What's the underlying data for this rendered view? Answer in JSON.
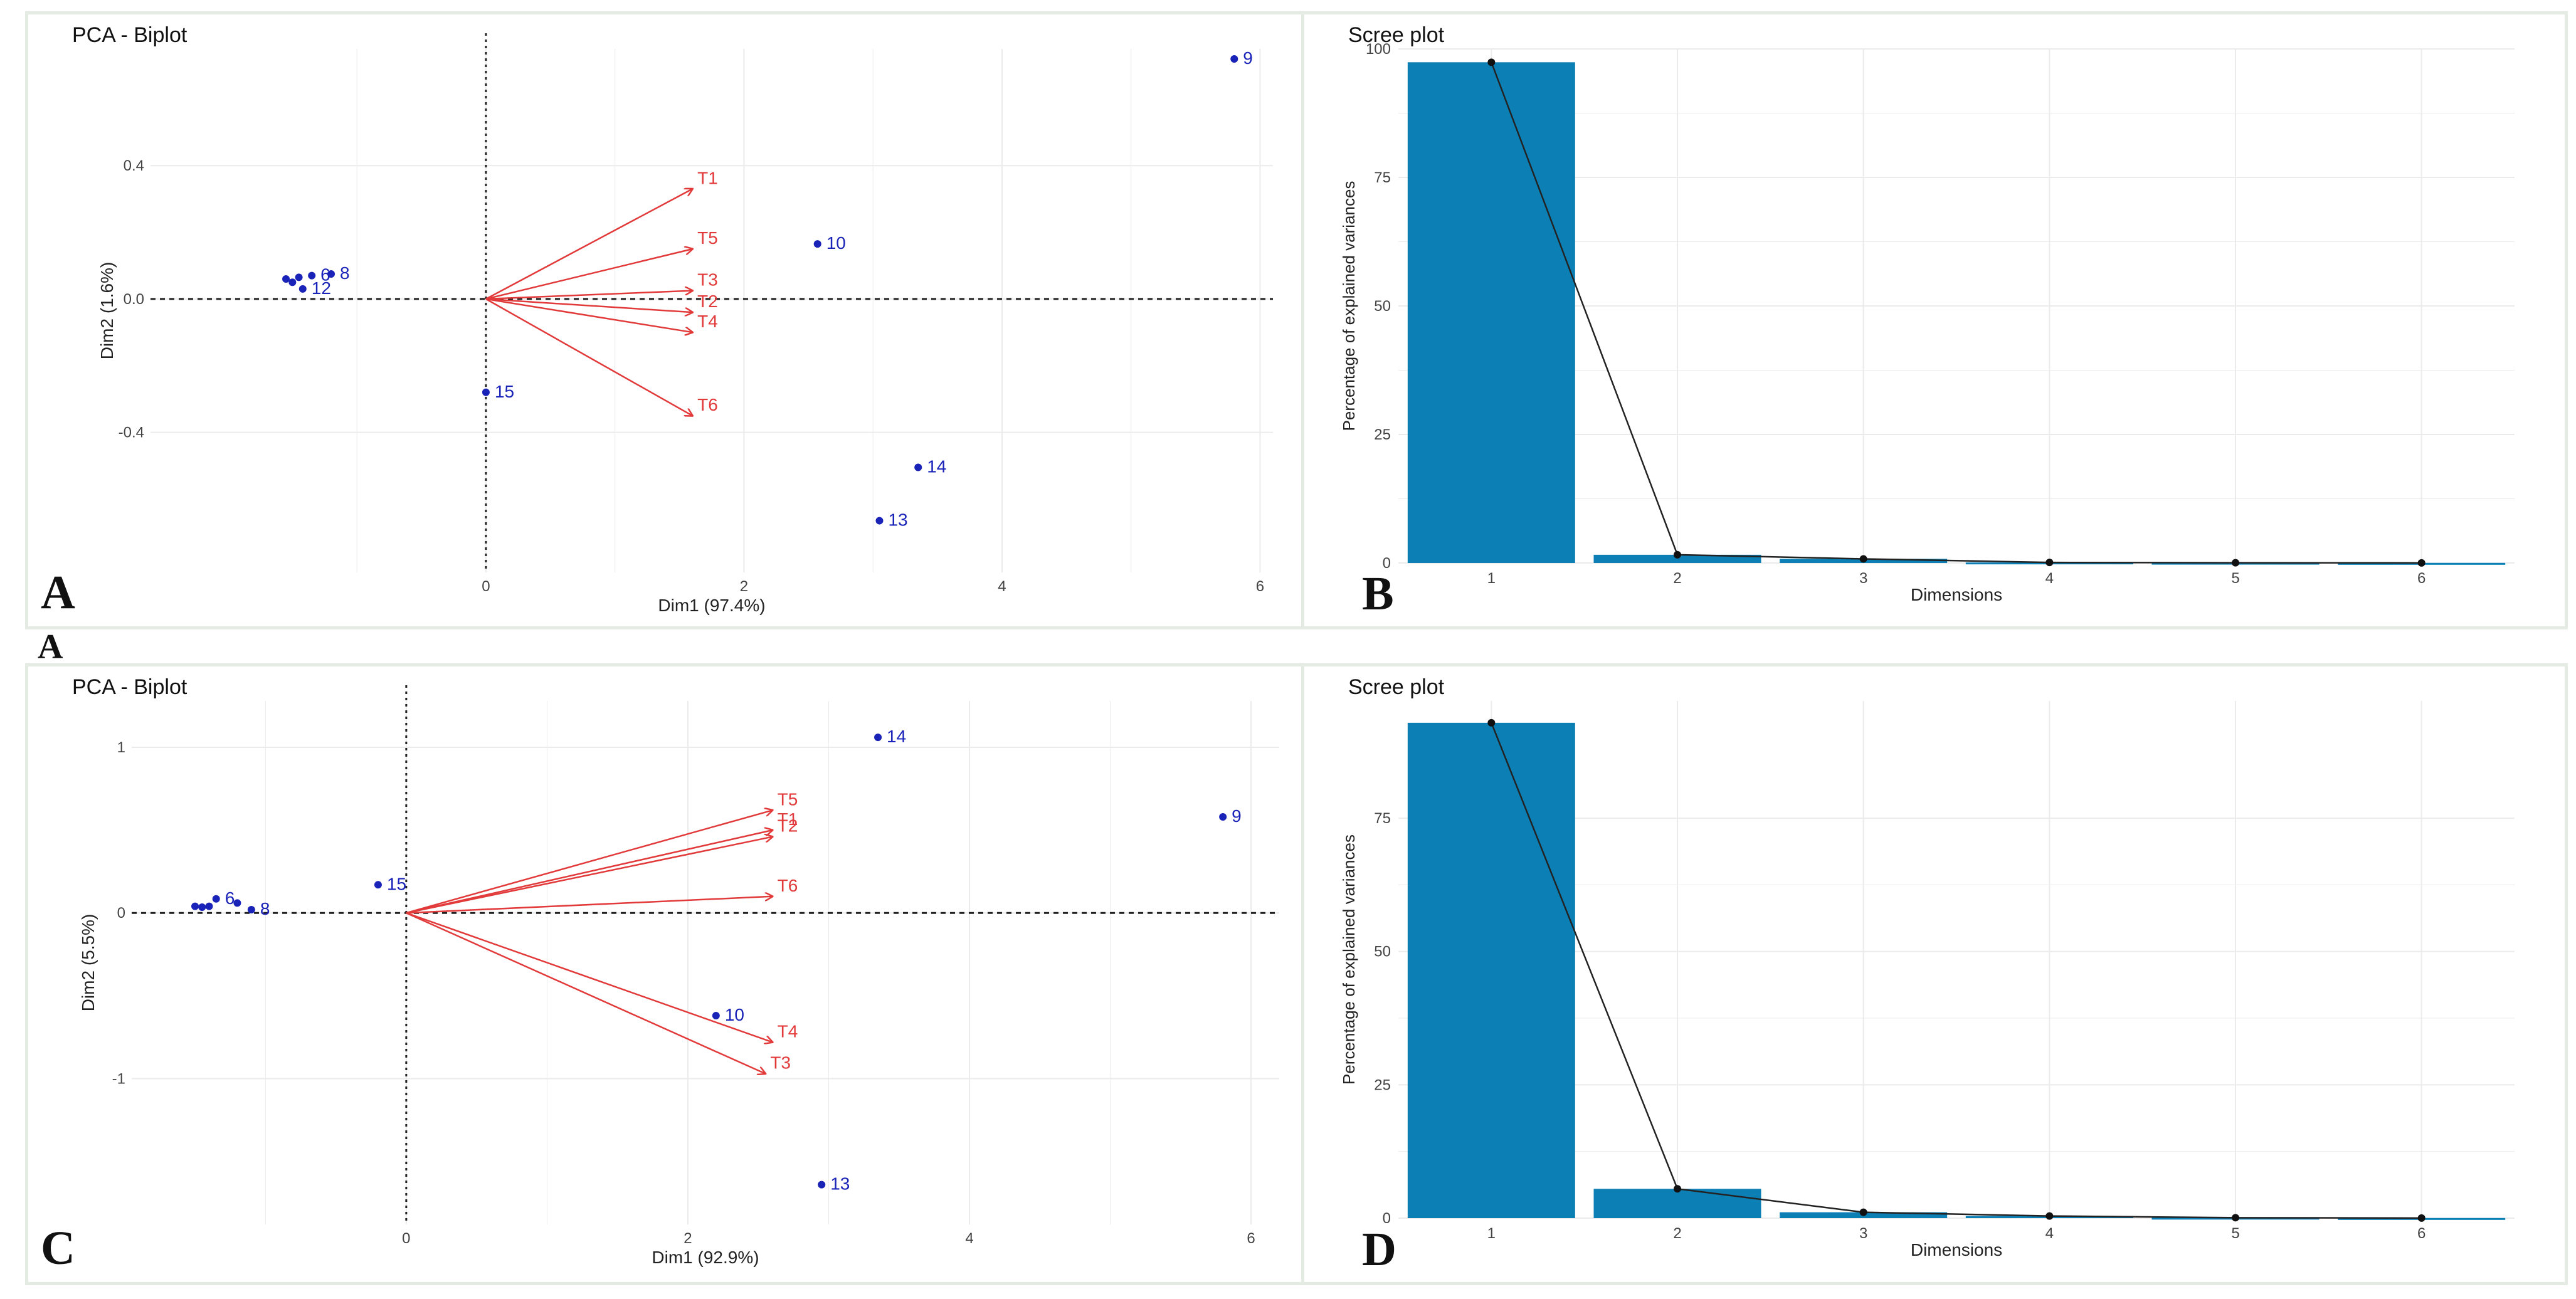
{
  "panels": {
    "a": "A",
    "a_ghost": "A",
    "b": "B",
    "c": "C",
    "d": "D"
  },
  "colors": {
    "point": "#1a23b8",
    "arrow": "#e23a3a",
    "bar": "#0c7fb5",
    "grid": "#ebebeb"
  },
  "chart_data": [
    {
      "id": "a",
      "type": "scatter",
      "subtype": "pca-biplot",
      "title": "PCA - Biplot",
      "xlabel": "Dim1 (97.4%)",
      "ylabel": "Dim2 (1.6%)",
      "xlim": [
        -2.6,
        6.1
      ],
      "ylim": [
        -0.82,
        0.75
      ],
      "xticks": [
        0,
        2,
        4,
        6
      ],
      "xtick_labels": [
        "0",
        "2",
        "4",
        "6"
      ],
      "yticks": [
        -0.4,
        0.0,
        0.4
      ],
      "ytick_labels": [
        "-0.4",
        "0.0",
        "0.4"
      ],
      "points": [
        {
          "x": -1.55,
          "y": 0.06,
          "label": ""
        },
        {
          "x": -1.5,
          "y": 0.05,
          "label": ""
        },
        {
          "x": -1.45,
          "y": 0.065,
          "label": ""
        },
        {
          "x": -1.35,
          "y": 0.07,
          "label": "6"
        },
        {
          "x": -1.2,
          "y": 0.075,
          "label": "8"
        },
        {
          "x": -1.42,
          "y": 0.03,
          "label": "12"
        },
        {
          "x": 0.0,
          "y": -0.28,
          "label": "15"
        },
        {
          "x": 2.57,
          "y": 0.165,
          "label": "10"
        },
        {
          "x": 3.35,
          "y": -0.505,
          "label": "14"
        },
        {
          "x": 3.05,
          "y": -0.665,
          "label": "13"
        },
        {
          "x": 5.8,
          "y": 0.72,
          "label": "9"
        }
      ],
      "arrows": [
        {
          "label": "T1",
          "x": 1.6,
          "y": 0.33
        },
        {
          "label": "T5",
          "x": 1.6,
          "y": 0.15
        },
        {
          "label": "T3",
          "x": 1.6,
          "y": 0.025
        },
        {
          "label": "T2",
          "x": 1.6,
          "y": -0.04
        },
        {
          "label": "T4",
          "x": 1.6,
          "y": -0.1
        },
        {
          "label": "T6",
          "x": 1.6,
          "y": -0.35
        }
      ]
    },
    {
      "id": "b",
      "type": "bar",
      "subtype": "scree-plot",
      "title": "Scree plot",
      "xlabel": "Dimensions",
      "ylabel": "Percentage of explained variances",
      "categories": [
        "1",
        "2",
        "3",
        "4",
        "5",
        "6"
      ],
      "values": [
        97.4,
        1.6,
        0.8,
        0.1,
        0.05,
        0.02
      ],
      "yticks": [
        0,
        25,
        50,
        75,
        100
      ],
      "ytick_labels": [
        "0",
        "25",
        "50",
        "75",
        "100"
      ],
      "ylim": [
        0,
        100
      ],
      "line": true
    },
    {
      "id": "c",
      "type": "scatter",
      "subtype": "pca-biplot",
      "title": "PCA - Biplot",
      "xlabel": "Dim1 (92.9%)",
      "ylabel": "Dim2 (5.5%)",
      "xlim": [
        -1.95,
        6.2
      ],
      "ylim": [
        -1.88,
        1.28
      ],
      "xticks": [
        0,
        2,
        4,
        6
      ],
      "xtick_labels": [
        "0",
        "2",
        "4",
        "6"
      ],
      "yticks": [
        -1,
        0,
        1
      ],
      "ytick_labels": [
        "-1",
        "0",
        "1"
      ],
      "points": [
        {
          "x": -1.5,
          "y": 0.04,
          "label": ""
        },
        {
          "x": -1.45,
          "y": 0.035,
          "label": ""
        },
        {
          "x": -1.4,
          "y": 0.04,
          "label": ""
        },
        {
          "x": -1.35,
          "y": 0.085,
          "label": "6"
        },
        {
          "x": -1.2,
          "y": 0.06,
          "label": ""
        },
        {
          "x": -1.1,
          "y": 0.02,
          "label": "8"
        },
        {
          "x": -0.2,
          "y": 0.17,
          "label": "15"
        },
        {
          "x": 2.2,
          "y": -0.62,
          "label": "10"
        },
        {
          "x": 3.35,
          "y": 1.06,
          "label": "14"
        },
        {
          "x": 2.95,
          "y": -1.64,
          "label": "13"
        },
        {
          "x": 5.8,
          "y": 0.58,
          "label": "9"
        }
      ],
      "arrows": [
        {
          "label": "T5",
          "x": 2.6,
          "y": 0.62
        },
        {
          "label": "T1",
          "x": 2.6,
          "y": 0.5
        },
        {
          "label": "T2",
          "x": 2.6,
          "y": 0.46
        },
        {
          "label": "T6",
          "x": 2.6,
          "y": 0.1
        },
        {
          "label": "T4",
          "x": 2.6,
          "y": -0.78
        },
        {
          "label": "T3",
          "x": 2.55,
          "y": -0.97
        }
      ]
    },
    {
      "id": "d",
      "type": "bar",
      "subtype": "scree-plot",
      "title": "Scree plot",
      "xlabel": "Dimensions",
      "ylabel": "Percentage of explained variances",
      "categories": [
        "1",
        "2",
        "3",
        "4",
        "5",
        "6"
      ],
      "values": [
        92.9,
        5.5,
        1.1,
        0.4,
        0.08,
        0.02
      ],
      "yticks": [
        0,
        25,
        50,
        75
      ],
      "ytick_labels": [
        "0",
        "25",
        "50",
        "75"
      ],
      "ylim": [
        0,
        97
      ],
      "line": true
    }
  ]
}
